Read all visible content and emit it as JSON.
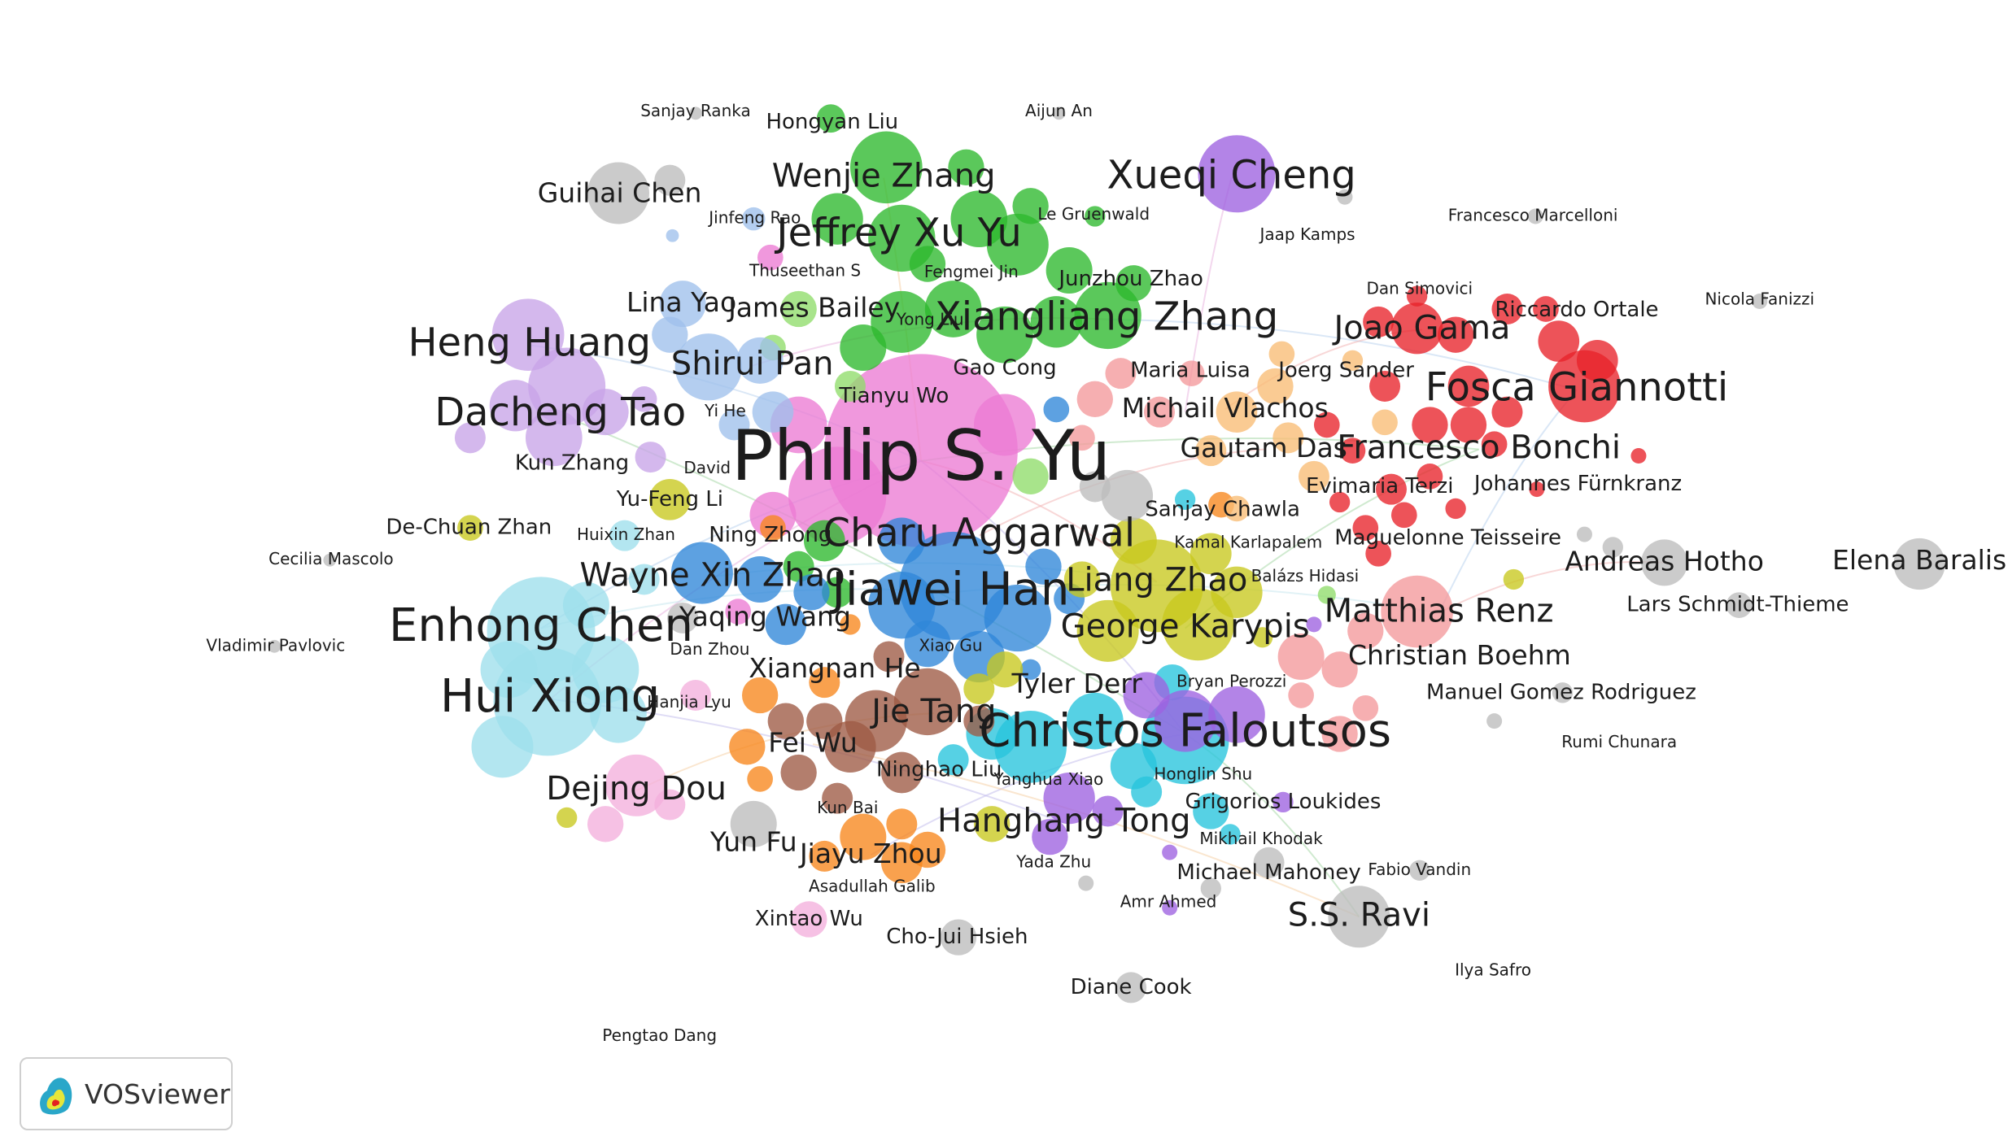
{
  "app": {
    "brand_label": "VOSviewer"
  },
  "clusters": {
    "red": "#e8232a",
    "green": "#2db82d",
    "blue": "#2f86d8",
    "yellow": "#c8c81e",
    "purple": "#9d62e0",
    "cyan": "#26c4dc",
    "orange": "#f7861c",
    "brown": "#9e5a44",
    "pink": "#ec7bd4",
    "lightred": "#f4999b",
    "lightgreen": "#8fdc6a",
    "lightblue": "#9fc0ec",
    "lightyellow": "#dede8c",
    "lightpurple": "#c8a4e8",
    "lightcyan": "#9edfec",
    "lightorange": "#f9bc74",
    "lightbrown": "#d6a595",
    "lightpink": "#f4b0dc",
    "gray": "#bdbdbd"
  },
  "labels": [
    {
      "text": "Philip S. Yu",
      "cluster": "pink",
      "weight": 9
    },
    {
      "text": "Jiawei Han",
      "cluster": "blue",
      "weight": 6
    },
    {
      "text": "Charu Aggarwal",
      "cluster": "blue",
      "weight": 5
    },
    {
      "text": "Christos Faloutsos",
      "cluster": "cyan",
      "weight": 6
    },
    {
      "text": "Hui Xiong",
      "cluster": "lightcyan",
      "weight": 6
    },
    {
      "text": "Enhong Chen",
      "cluster": "lightcyan",
      "weight": 6
    },
    {
      "text": "Dacheng Tao",
      "cluster": "lightpurple",
      "weight": 5
    },
    {
      "text": "Heng Huang",
      "cluster": "lightpurple",
      "weight": 5
    },
    {
      "text": "Xiangliang Zhang",
      "cluster": "green",
      "weight": 5
    },
    {
      "text": "Jeffrey Xu Yu",
      "cluster": "green",
      "weight": 5
    },
    {
      "text": "Wenjie Zhang",
      "cluster": "green",
      "weight": 4
    },
    {
      "text": "Xueqi Cheng",
      "cluster": "purple",
      "weight": 5
    },
    {
      "text": "Fosca Giannotti",
      "cluster": "red",
      "weight": 5
    },
    {
      "text": "Francesco Bonchi",
      "cluster": "red",
      "weight": 4
    },
    {
      "text": "Joao Gama",
      "cluster": "red",
      "weight": 4
    },
    {
      "text": "Matthias Renz",
      "cluster": "lightred",
      "weight": 4
    },
    {
      "text": "Christian Boehm",
      "cluster": "lightred",
      "weight": 3
    },
    {
      "text": "Liang Zhao",
      "cluster": "yellow",
      "weight": 4
    },
    {
      "text": "George Karypis",
      "cluster": "yellow",
      "weight": 4
    },
    {
      "text": "Jie Tang",
      "cluster": "brown",
      "weight": 4
    },
    {
      "text": "Fei Wu",
      "cluster": "brown",
      "weight": 3
    },
    {
      "text": "Hanghang Tong",
      "cluster": "purple",
      "weight": 4
    },
    {
      "text": "Dejing Dou",
      "cluster": "lightpink",
      "weight": 4
    },
    {
      "text": "Wayne Xin Zhao",
      "cluster": "blue",
      "weight": 4
    },
    {
      "text": "Shirui Pan",
      "cluster": "lightblue",
      "weight": 4
    },
    {
      "text": "Guihai Chen",
      "cluster": "gray",
      "weight": 3
    },
    {
      "text": "S.S. Ravi",
      "cluster": "gray",
      "weight": 4
    },
    {
      "text": "Elena Baralis",
      "cluster": "gray",
      "weight": 3
    },
    {
      "text": "Andreas Hotho",
      "cluster": "gray",
      "weight": 3
    },
    {
      "text": "Michail Vlachos",
      "cluster": "lightorange",
      "weight": 3
    },
    {
      "text": "Gautam Das",
      "cluster": "lightorange",
      "weight": 3
    },
    {
      "text": "Lina Yao",
      "cluster": "lightblue",
      "weight": 3
    },
    {
      "text": "James Bailey",
      "cluster": "lightgreen",
      "weight": 3
    },
    {
      "text": "Xiangnan He",
      "cluster": "orange",
      "weight": 3
    },
    {
      "text": "Yaqing Wang",
      "cluster": "blue",
      "weight": 3
    },
    {
      "text": "Tyler Derr",
      "cluster": "cyan",
      "weight": 3
    },
    {
      "text": "Jiayu Zhou",
      "cluster": "orange",
      "weight": 3
    },
    {
      "text": "Yun Fu",
      "cluster": "gray",
      "weight": 3
    },
    {
      "text": "Xintao Wu",
      "cluster": "lightpink",
      "weight": 2
    },
    {
      "text": "Cho-Jui Hsieh",
      "cluster": "gray",
      "weight": 2
    },
    {
      "text": "Diane Cook",
      "cluster": "gray",
      "weight": 2
    },
    {
      "text": "Michael Mahoney",
      "cluster": "gray",
      "weight": 2
    },
    {
      "text": "Grigorios Loukides",
      "cluster": "purple",
      "weight": 2
    },
    {
      "text": "Hongyan Liu",
      "cluster": "green",
      "weight": 2
    },
    {
      "text": "Kun Zhang",
      "cluster": "lightpurple",
      "weight": 2
    },
    {
      "text": "Ning Zhong",
      "cluster": "orange",
      "weight": 2
    },
    {
      "text": "De-Chuan Zhan",
      "cluster": "yellow",
      "weight": 2
    },
    {
      "text": "Sanjay Chawla",
      "cluster": "cyan",
      "weight": 2
    },
    {
      "text": "Maguelonne Teisseire",
      "cluster": "red",
      "weight": 2
    },
    {
      "text": "Manuel Gomez Rodriguez",
      "cluster": "gray",
      "weight": 2
    },
    {
      "text": "Lars Schmidt-Thieme",
      "cluster": "gray",
      "weight": 2
    },
    {
      "text": "Gao Cong",
      "cluster": "green",
      "weight": 2
    },
    {
      "text": "Junzhou Zhao",
      "cluster": "green",
      "weight": 2
    },
    {
      "text": "Joerg Sander",
      "cluster": "lightorange",
      "weight": 2
    },
    {
      "text": "Maria Luisa",
      "cluster": "lightred",
      "weight": 2
    },
    {
      "text": "Riccardo Ortale",
      "cluster": "red",
      "weight": 2
    },
    {
      "text": "Evimaria Terzi",
      "cluster": "red",
      "weight": 2
    },
    {
      "text": "Johannes Fürnkranz",
      "cluster": "red",
      "weight": 2
    },
    {
      "text": "Yu-Feng Li",
      "cluster": "yellow",
      "weight": 2
    },
    {
      "text": "Huixin Zhan",
      "cluster": "lightcyan",
      "weight": 1
    },
    {
      "text": "Cecilia Mascolo",
      "cluster": "gray",
      "weight": 1
    },
    {
      "text": "Vladimir Pavlovic",
      "cluster": "gray",
      "weight": 1
    },
    {
      "text": "Tianyu Wo",
      "cluster": "pink",
      "weight": 2
    },
    {
      "text": "Xiao Gu",
      "cluster": "blue",
      "weight": 1
    },
    {
      "text": "Dan Zhou",
      "cluster": "pink",
      "weight": 1
    },
    {
      "text": "Hanjia Lyu",
      "cluster": "lightpink",
      "weight": 1
    },
    {
      "text": "Ninghao Liu",
      "cluster": "cyan",
      "weight": 2
    },
    {
      "text": "Kun Bai",
      "cluster": "brown",
      "weight": 1
    },
    {
      "text": "Asadullah Galib",
      "cluster": "orange",
      "weight": 1
    },
    {
      "text": "Yanghua Xiao",
      "cluster": "purple",
      "weight": 1
    },
    {
      "text": "Yada Zhu",
      "cluster": "purple",
      "weight": 1
    },
    {
      "text": "Honglin Shu",
      "cluster": "purple",
      "weight": 1
    },
    {
      "text": "Bryan Perozzi",
      "cluster": "cyan",
      "weight": 1
    },
    {
      "text": "Kamal Karlapalem",
      "cluster": "yellow",
      "weight": 1
    },
    {
      "text": "Balázs Hidasi",
      "cluster": "lightred",
      "weight": 1
    },
    {
      "text": "Mikhail Khodak",
      "cluster": "cyan",
      "weight": 1
    },
    {
      "text": "Amr Ahmed",
      "cluster": "purple",
      "weight": 1
    },
    {
      "text": "Fabio Vandin",
      "cluster": "gray",
      "weight": 1
    },
    {
      "text": "Ilya Safro",
      "cluster": "yellow",
      "weight": 1
    },
    {
      "text": "Rumi Chunara",
      "cluster": "gray",
      "weight": 1
    },
    {
      "text": "Pengtao Dang",
      "cluster": "gray",
      "weight": 1
    },
    {
      "text": "Nicola Fanizzi",
      "cluster": "gray",
      "weight": 1
    },
    {
      "text": "Francesco Marcelloni",
      "cluster": "gray",
      "weight": 1
    },
    {
      "text": "Dan Simovici",
      "cluster": "red",
      "weight": 1
    },
    {
      "text": "Jaap Kamps",
      "cluster": "purple",
      "weight": 1
    },
    {
      "text": "Le Gruenwald",
      "cluster": "green",
      "weight": 1
    },
    {
      "text": "Aijun An",
      "cluster": "gray",
      "weight": 1
    },
    {
      "text": "Sanjay Ranka",
      "cluster": "gray",
      "weight": 1
    },
    {
      "text": "Jinfeng Rao",
      "cluster": "lightblue",
      "weight": 1
    },
    {
      "text": "Thuseethan S",
      "cluster": "pink",
      "weight": 1
    },
    {
      "text": "Fengmei Jin",
      "cluster": "green",
      "weight": 1
    },
    {
      "text": "Yong Liu",
      "cluster": "green",
      "weight": 1
    },
    {
      "text": "Yi He",
      "cluster": "lightblue",
      "weight": 1
    },
    {
      "text": "David",
      "cluster": "yellow",
      "weight": 1
    }
  ]
}
